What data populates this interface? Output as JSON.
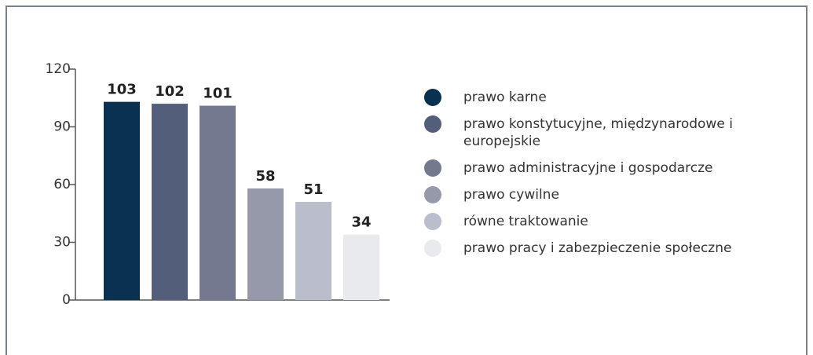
{
  "chart_data": {
    "type": "bar",
    "categories": [
      "prawo karne",
      "prawo konstytucyjne, międzynarodowe i europejskie",
      "prawo administracyjne i gospodarcze",
      "prawo cywilne",
      "równe traktowanie",
      "prawo pracy i zabezpieczenie społeczne"
    ],
    "values": [
      103,
      102,
      101,
      58,
      51,
      34
    ],
    "colors": [
      "#0b3150",
      "#535e7b",
      "#737a90",
      "#9599a9",
      "#babdcb",
      "#e9eaee"
    ],
    "ylim": [
      0,
      120
    ],
    "yticks": [
      0,
      30,
      60,
      90,
      120
    ]
  }
}
